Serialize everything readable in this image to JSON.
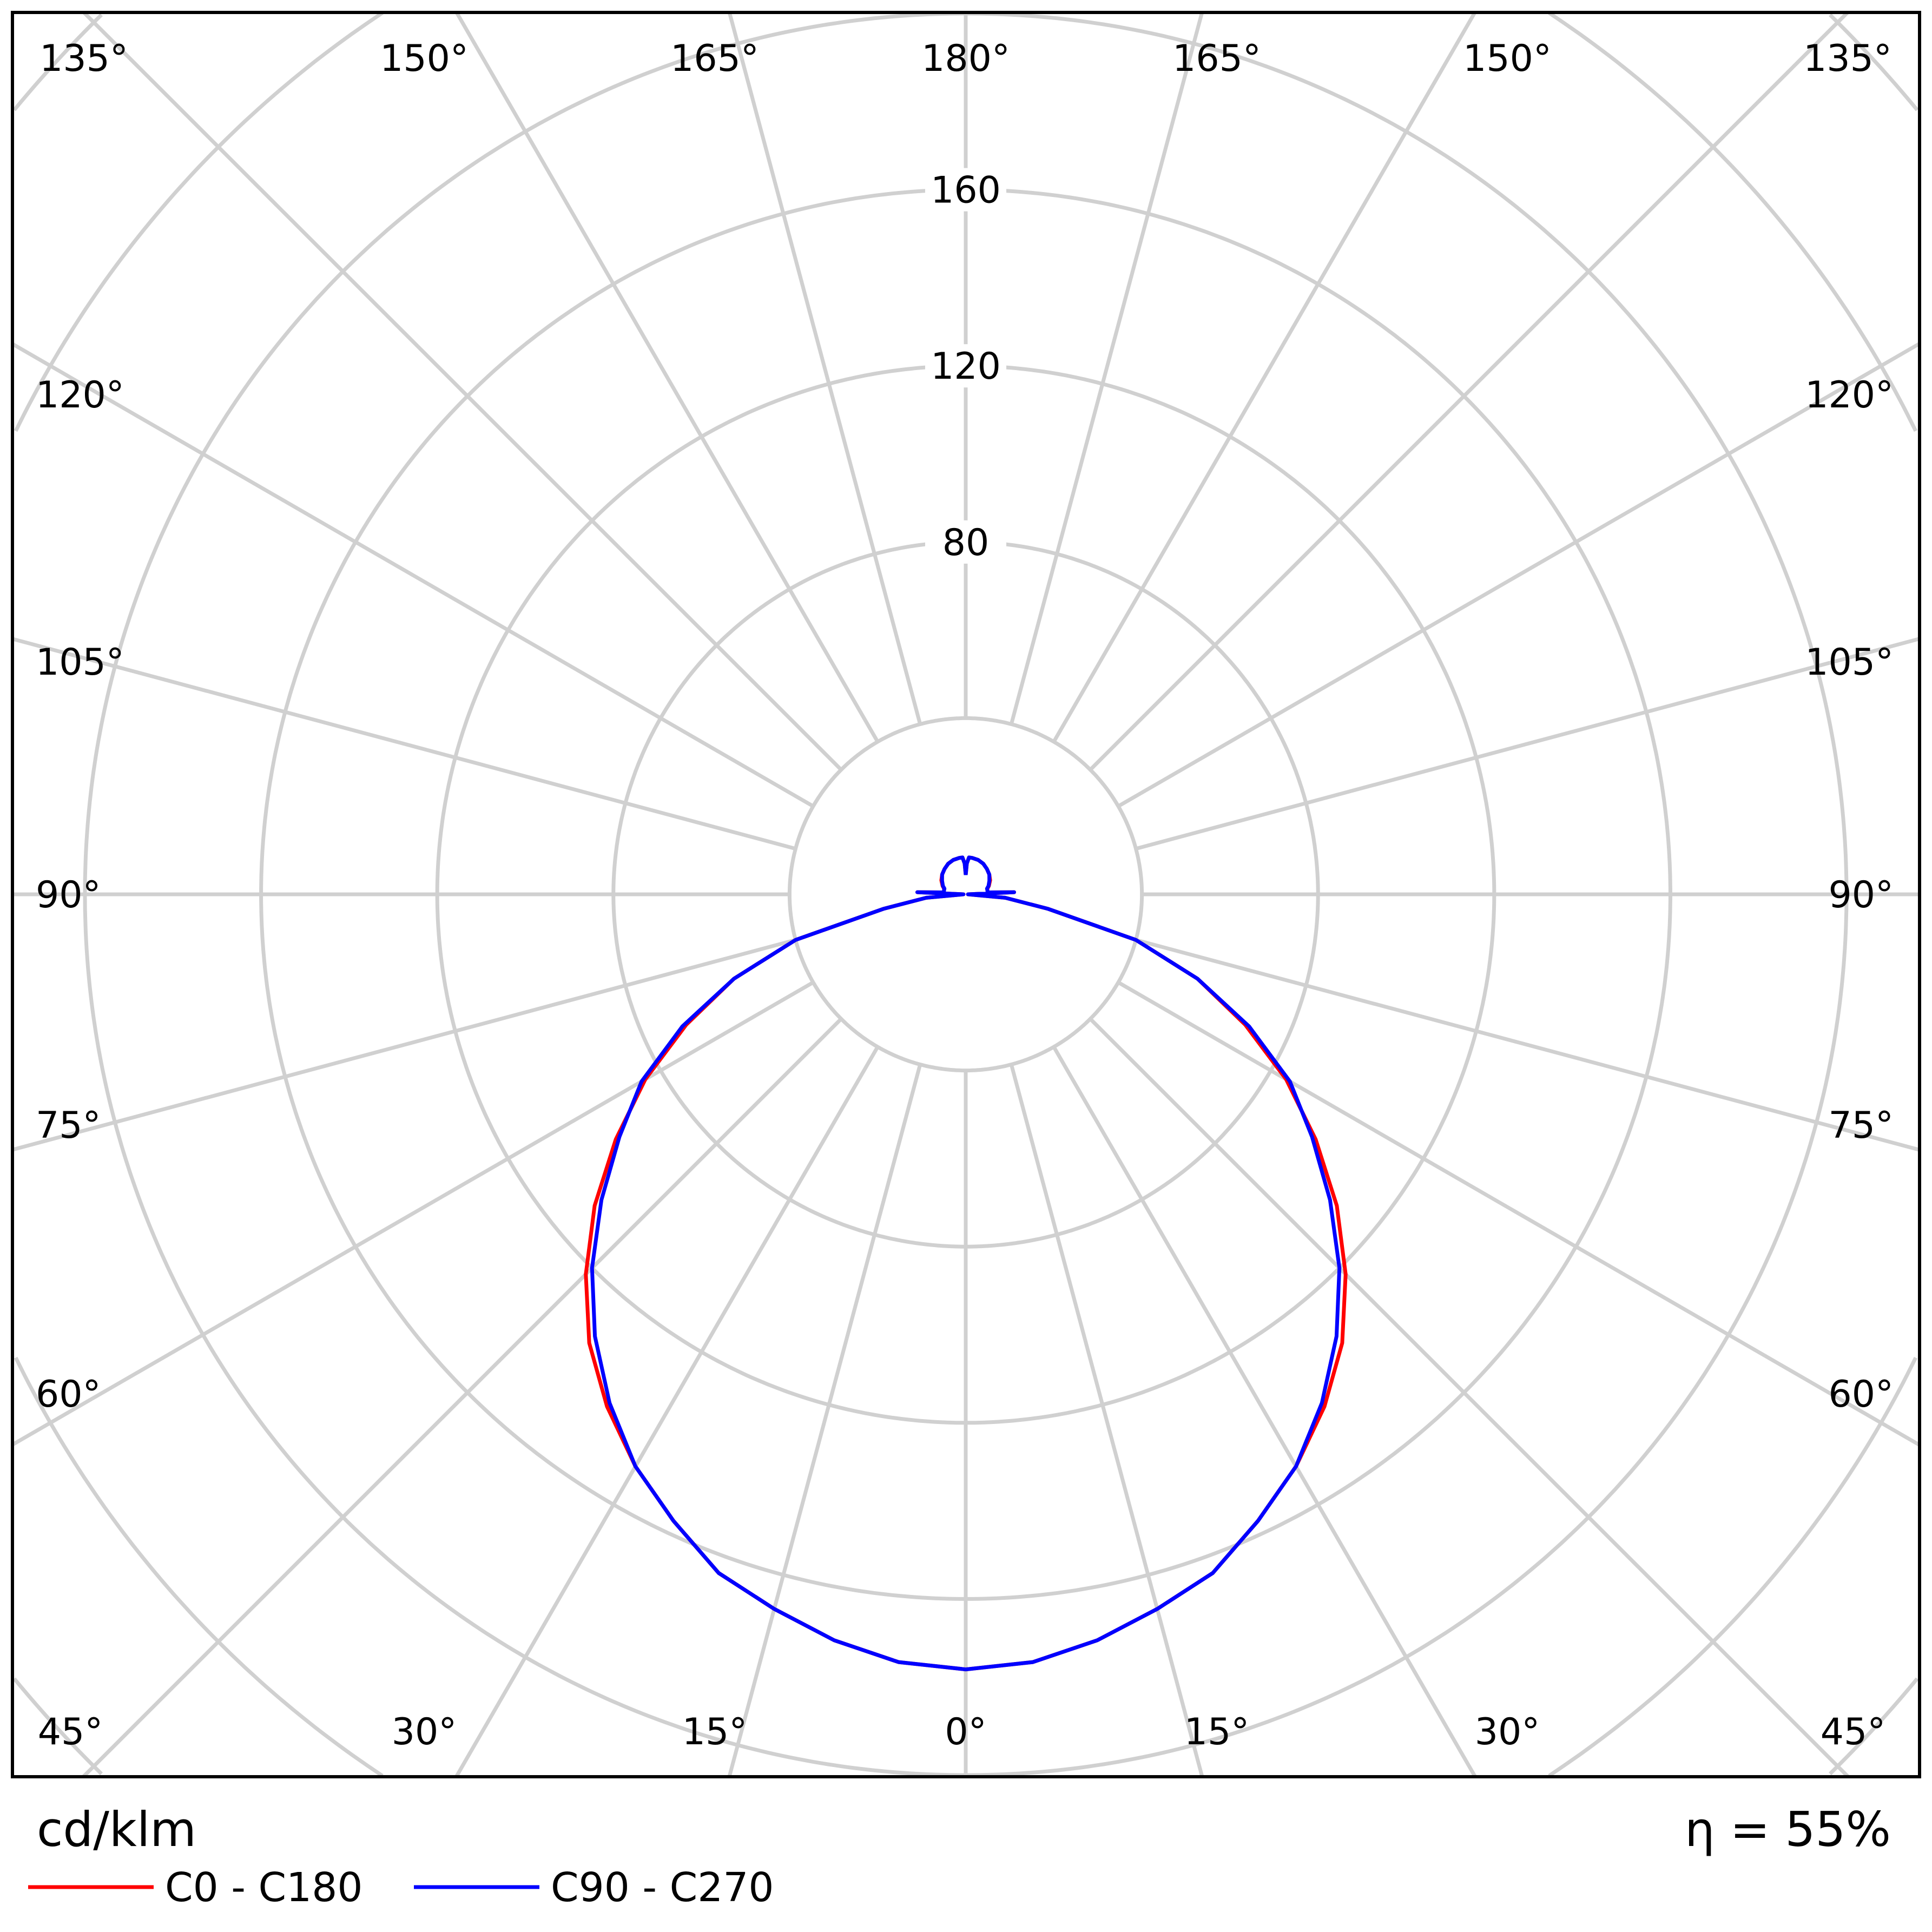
{
  "chart_data": {
    "type": "polar",
    "unit_label": "cd/klm",
    "efficiency_label": "η = 55%",
    "radial_range": [
      0,
      280
    ],
    "radial_grid": [
      40,
      80,
      120,
      160,
      200,
      240,
      280
    ],
    "radial_tick_labels": [
      "80",
      "120",
      "160"
    ],
    "angle_grid_step_deg": 15,
    "angle_labels": {
      "top": [
        "135°",
        "150°",
        "165°",
        "180°",
        "165°",
        "150°",
        "135°"
      ],
      "left": [
        "120°",
        "105°",
        "90°",
        "75°",
        "60°"
      ],
      "right": [
        "120°",
        "105°",
        "90°",
        "75°",
        "60°"
      ],
      "bottom": [
        "45°",
        "30°",
        "15°",
        "0°",
        "15°",
        "30°",
        "45°"
      ]
    },
    "grid": true,
    "legend_placement": "bottom-left",
    "angles_deg": [
      0,
      5,
      10,
      15,
      20,
      25,
      30,
      35,
      40,
      45,
      50,
      55,
      60,
      65,
      70,
      75,
      80,
      85,
      90,
      92.5,
      95,
      100,
      105,
      110,
      120,
      130,
      140,
      150,
      160,
      170,
      175,
      178,
      180
    ],
    "series": [
      {
        "name": "C0 - C180",
        "color": "#ff0000",
        "values": [
          176,
          175,
          172,
          168,
          164,
          157,
          150,
          142,
          133,
          122,
          110,
          97,
          84,
          70,
          56,
          40,
          19,
          9,
          0.5,
          11,
          5,
          5,
          5.1,
          5.6,
          6.4,
          7,
          7.5,
          8,
          8.3,
          8.4,
          8.4,
          7,
          4.4
        ]
      },
      {
        "name": "C90 - C270",
        "color": "#0000ff",
        "values": [
          176,
          175,
          172,
          168,
          164,
          157,
          150,
          141,
          131,
          120,
          108,
          96,
          85,
          71,
          56,
          40,
          19,
          9,
          0.5,
          11,
          5,
          5,
          5,
          5.5,
          6.2,
          7,
          7.5,
          8,
          8.3,
          8.4,
          8.4,
          7,
          4.4
        ]
      }
    ]
  }
}
